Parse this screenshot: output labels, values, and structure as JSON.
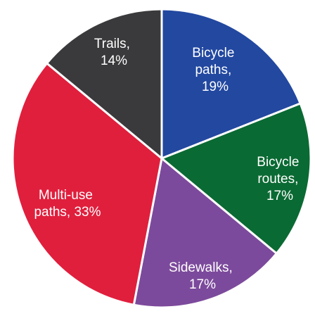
{
  "chart_data": {
    "type": "pie",
    "labels": [
      "Bicycle paths, 19%",
      "Bicycle routes, 17%",
      "Sidewalks, 17%",
      "Multi-use paths, 33%",
      "Trails, 14%"
    ],
    "values": [
      19,
      17,
      17,
      33,
      14
    ],
    "colors": [
      "#2248a0",
      "#0a6a33",
      "#7c4a9c",
      "#e01f3d",
      "#3a3a3c"
    ]
  }
}
